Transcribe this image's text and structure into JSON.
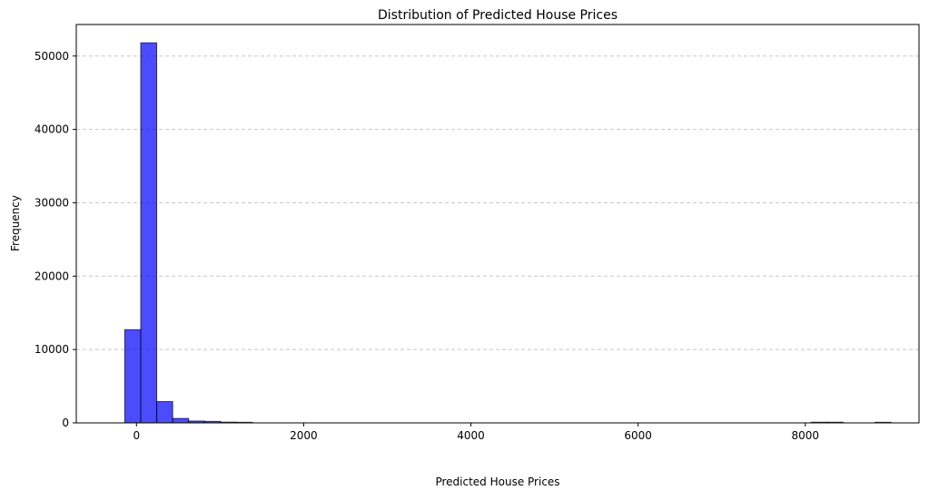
{
  "chart_data": {
    "type": "bar",
    "title": "Distribution of Predicted House Prices",
    "xlabel": "Predicted House Prices",
    "ylabel": "Frequency",
    "xlim": [
      -720,
      9360
    ],
    "ylim": [
      0,
      54300
    ],
    "x_ticks": [
      0,
      2000,
      4000,
      6000,
      8000
    ],
    "y_ticks": [
      0,
      10000,
      20000,
      30000,
      40000,
      50000
    ],
    "grid": "y dashed",
    "bar_color": "#0000ff",
    "bar_alpha": 0.7,
    "edge_color": "#000000",
    "bins": [
      {
        "x0": -140,
        "x1": 51,
        "value": 12700
      },
      {
        "x0": 51,
        "x1": 242,
        "value": 51800
      },
      {
        "x0": 242,
        "x1": 433,
        "value": 2900
      },
      {
        "x0": 433,
        "x1": 624,
        "value": 600
      },
      {
        "x0": 624,
        "x1": 815,
        "value": 250
      },
      {
        "x0": 815,
        "x1": 1006,
        "value": 200
      },
      {
        "x0": 1006,
        "x1": 1197,
        "value": 100
      },
      {
        "x0": 1197,
        "x1": 1388,
        "value": 80
      },
      {
        "x0": 8070,
        "x1": 8261,
        "value": 90
      },
      {
        "x0": 8261,
        "x1": 8452,
        "value": 90
      },
      {
        "x0": 8834,
        "x1": 9025,
        "value": 80
      }
    ]
  }
}
